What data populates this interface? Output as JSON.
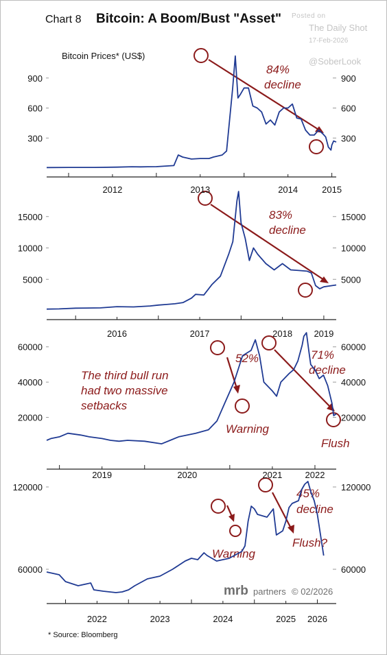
{
  "header": {
    "chart_label": "Chart 8",
    "title": "Bitcoin: A Boom/Bust \"Asset\""
  },
  "watermark": {
    "line1": "Posted on",
    "line2": "The Daily Shot",
    "line3": "17-Feb-2026",
    "line4": "@SoberLook"
  },
  "source": "* Source: Bloomberg",
  "branding": {
    "mrb": "mrb",
    "partners": "partners",
    "date": "© 02/2026"
  },
  "colors": {
    "line": "#1f3a93",
    "annotation": "#8b1a1a",
    "axis": "#222222"
  },
  "chart_data": [
    {
      "type": "line",
      "ylabel": "Bitcoin Prices* (US$)",
      "x_ticks": [
        "2012",
        "2013",
        "2014",
        "2015"
      ],
      "x_range": [
        2011.75,
        2015.05
      ],
      "y_ticks": [
        "900",
        "600",
        "300"
      ],
      "ylim": [
        0,
        1200
      ],
      "series": [
        {
          "x": [
            2011.75,
            2012.0,
            2012.3,
            2012.55,
            2012.72,
            2012.82,
            2012.9,
            2013.0,
            2013.2,
            2013.25,
            2013.3,
            2013.4,
            2013.5,
            2013.6,
            2013.65,
            2013.7,
            2013.75,
            2013.8,
            2013.87,
            2013.9,
            2013.93,
            2013.96,
            2014.0,
            2014.05,
            2014.1,
            2014.15,
            2014.2,
            2014.25,
            2014.3,
            2014.35,
            2014.4,
            2014.45,
            2014.5,
            2014.55,
            2014.6,
            2014.65,
            2014.7,
            2014.75,
            2014.8,
            2014.85,
            2014.9,
            2014.93,
            2014.96,
            2014.99,
            2015.0,
            2015.02,
            2015.05
          ],
          "y": [
            5,
            6,
            6,
            9,
            13,
            12,
            13,
            14,
            25,
            130,
            110,
            90,
            95,
            95,
            110,
            120,
            130,
            170,
            800,
            1120,
            700,
            740,
            800,
            800,
            620,
            600,
            560,
            440,
            480,
            430,
            560,
            600,
            600,
            640,
            500,
            490,
            380,
            330,
            330,
            380,
            340,
            310,
            210,
            180,
            230,
            270,
            260
          ]
        }
      ],
      "annotations": [
        "84%",
        "decline"
      ]
    },
    {
      "type": "line",
      "x_ticks": [
        "2016",
        "2017",
        "2018",
        "2019"
      ],
      "x_range": [
        2015.65,
        2019.15
      ],
      "y_ticks": [
        "15000",
        "10000",
        "5000"
      ],
      "ylim": [
        0,
        20000
      ],
      "series": [
        {
          "x": [
            2015.65,
            2015.8,
            2016.0,
            2016.3,
            2016.5,
            2016.7,
            2016.9,
            2017.0,
            2017.1,
            2017.2,
            2017.3,
            2017.4,
            2017.45,
            2017.55,
            2017.65,
            2017.75,
            2017.85,
            2017.9,
            2017.95,
            2017.97,
            2018.0,
            2018.05,
            2018.1,
            2018.15,
            2018.2,
            2018.3,
            2018.4,
            2018.5,
            2018.6,
            2018.7,
            2018.8,
            2018.85,
            2018.9,
            2018.95,
            2019.0,
            2019.1,
            2019.15
          ],
          "y": [
            250,
            280,
            400,
            450,
            650,
            600,
            750,
            900,
            1000,
            1100,
            1300,
            2000,
            2600,
            2500,
            4200,
            5500,
            9000,
            11000,
            17500,
            19000,
            14000,
            11500,
            8000,
            10000,
            9000,
            7500,
            6500,
            7500,
            6500,
            6400,
            6300,
            6000,
            4000,
            3500,
            3800,
            4000,
            4100
          ]
        }
      ],
      "annotations": [
        "83%",
        "decline"
      ]
    },
    {
      "type": "line",
      "x_ticks": [
        "2019",
        "2020",
        "2021",
        "2022"
      ],
      "x_range": [
        2018.85,
        2022.25
      ],
      "y_ticks": [
        "60000",
        "40000",
        "20000"
      ],
      "ylim": [
        0,
        70000
      ],
      "series": [
        {
          "x": [
            2018.85,
            2018.9,
            2019.0,
            2019.1,
            2019.25,
            2019.35,
            2019.5,
            2019.6,
            2019.7,
            2019.8,
            2020.0,
            2020.2,
            2020.3,
            2020.4,
            2020.6,
            2020.75,
            2020.85,
            2020.95,
            2021.05,
            2021.15,
            2021.25,
            2021.3,
            2021.35,
            2021.4,
            2021.5,
            2021.55,
            2021.6,
            2021.7,
            2021.75,
            2021.8,
            2021.85,
            2021.87,
            2021.9,
            2021.93,
            2021.95,
            2022.0,
            2022.05,
            2022.1,
            2022.15,
            2022.2,
            2022.22,
            2022.25
          ],
          "y": [
            7000,
            8000,
            9000,
            11000,
            10000,
            9000,
            8000,
            7000,
            6500,
            7000,
            6500,
            5000,
            7000,
            9000,
            11000,
            13000,
            18000,
            29000,
            40000,
            55000,
            58000,
            64000,
            55000,
            40000,
            35000,
            32000,
            40000,
            45000,
            47000,
            52000,
            61000,
            66000,
            68000,
            57000,
            50000,
            47000,
            42000,
            44000,
            38000,
            28000,
            21000,
            22000
          ]
        }
      ],
      "annotations": [
        "The third bull run",
        "had two massive",
        "setbacks",
        "52%",
        "Warning",
        "71%",
        "decline",
        "Flush"
      ]
    },
    {
      "type": "line",
      "x_ticks": [
        "2022",
        "2023",
        "2024",
        "2025",
        "2026"
      ],
      "x_range": [
        2021.7,
        2026.3
      ],
      "y_ticks": [
        "120000",
        "60000"
      ],
      "ylim": [
        40000,
        130000
      ],
      "series": [
        {
          "x": [
            2021.7,
            2021.8,
            2021.9,
            2022.0,
            2022.2,
            2022.4,
            2022.45,
            2022.6,
            2022.8,
            2022.9,
            2023.0,
            2023.1,
            2023.3,
            2023.5,
            2023.7,
            2023.8,
            2023.9,
            2024.0,
            2024.1,
            2024.2,
            2024.25,
            2024.4,
            2024.6,
            2024.8,
            2024.85,
            2024.9,
            2024.95,
            2025.0,
            2025.05,
            2025.2,
            2025.3,
            2025.35,
            2025.45,
            2025.5,
            2025.55,
            2025.6,
            2025.7,
            2025.75,
            2025.8,
            2025.85,
            2025.9,
            2025.95,
            2026.0,
            2026.1
          ],
          "y": [
            58000,
            57000,
            56000,
            51000,
            48000,
            50000,
            45000,
            44000,
            43000,
            43500,
            45000,
            48000,
            53000,
            55000,
            60000,
            63000,
            66000,
            68000,
            67000,
            72000,
            70000,
            66000,
            68000,
            73000,
            77000,
            95000,
            106000,
            104000,
            100000,
            98000,
            104000,
            85000,
            88000,
            95000,
            105000,
            108000,
            110000,
            118000,
            122000,
            124000,
            116000,
            110000,
            100000,
            70000
          ]
        }
      ],
      "annotations": [
        "45%",
        "decline",
        "Warning",
        "Flush?"
      ]
    }
  ]
}
